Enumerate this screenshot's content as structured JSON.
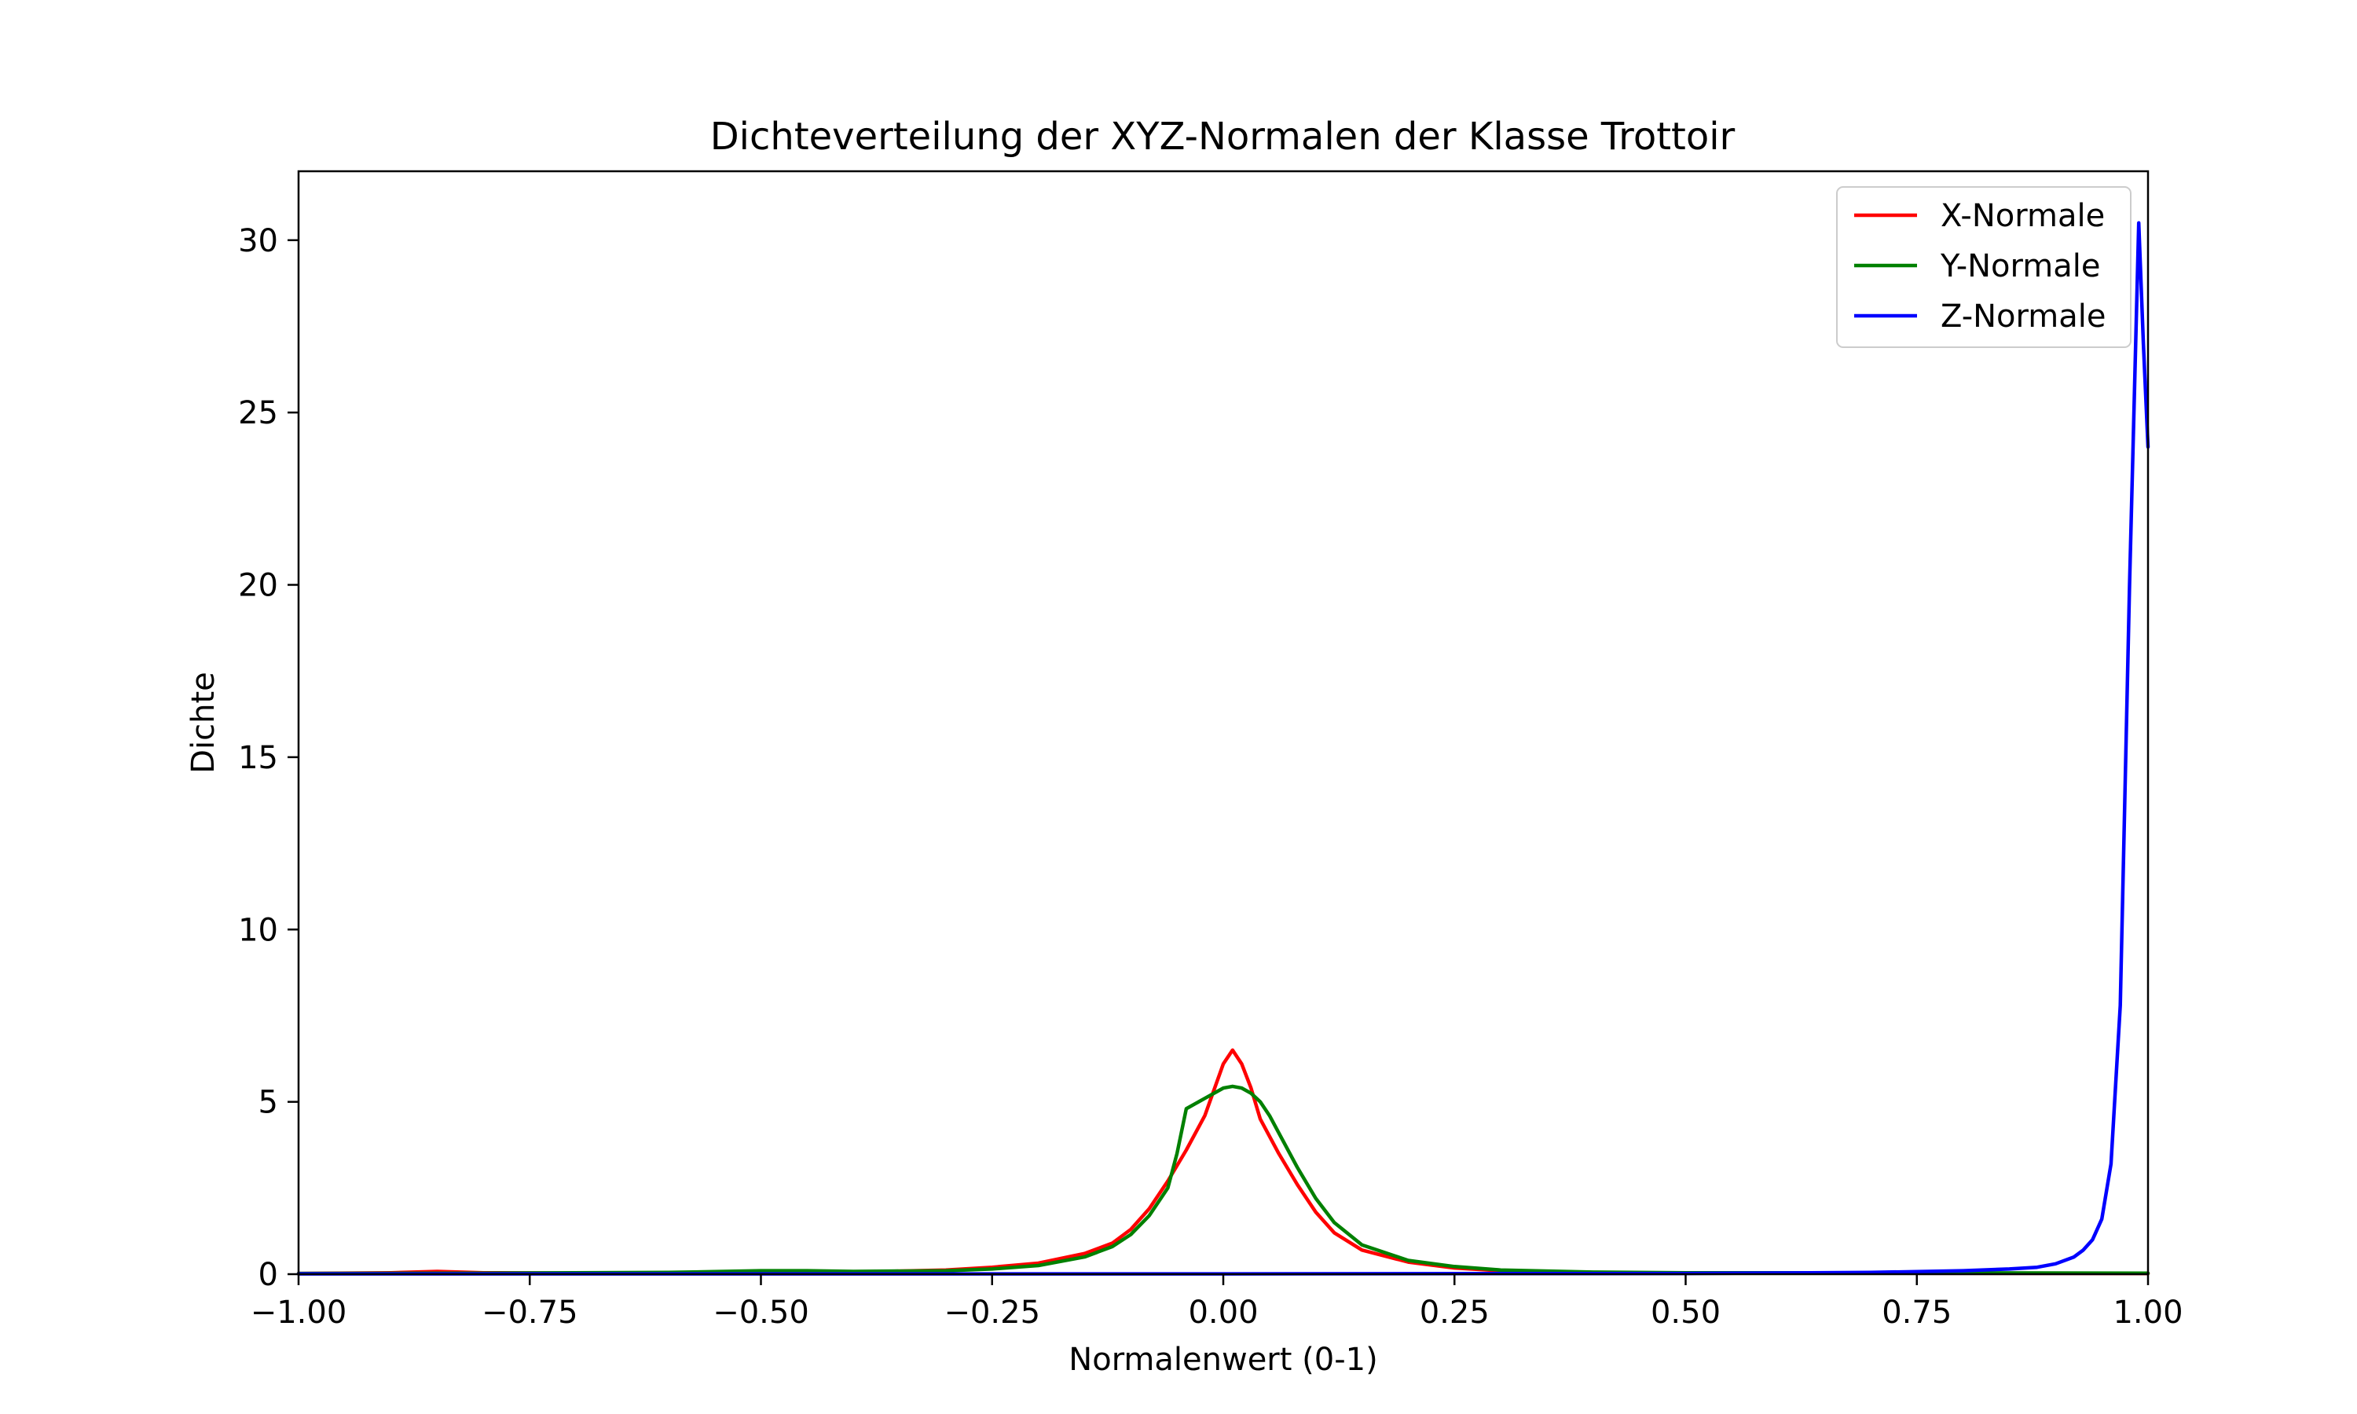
{
  "chart_data": {
    "type": "line",
    "title": "Dichteverteilung der XYZ-Normalen der Klasse Trottoir",
    "xlabel": "Normalenwert (0-1)",
    "ylabel": "Dichte",
    "xlim": [
      -1.0,
      1.0
    ],
    "ylim": [
      0,
      32
    ],
    "xticks": [
      -1.0,
      -0.75,
      -0.5,
      -0.25,
      0.0,
      0.25,
      0.5,
      0.75,
      1.0
    ],
    "xtick_labels": [
      "−1.00",
      "−0.75",
      "−0.50",
      "−0.25",
      "0.00",
      "0.25",
      "0.50",
      "0.75",
      "1.00"
    ],
    "yticks": [
      0,
      5,
      10,
      15,
      20,
      25,
      30
    ],
    "ytick_labels": [
      "0",
      "5",
      "10",
      "15",
      "20",
      "25",
      "30"
    ],
    "grid": false,
    "legend": "top-right",
    "series": [
      {
        "name": "X-Normale",
        "color": "#ff0000",
        "x": [
          -1.0,
          -0.9,
          -0.85,
          -0.8,
          -0.7,
          -0.6,
          -0.5,
          -0.4,
          -0.3,
          -0.25,
          -0.2,
          -0.15,
          -0.12,
          -0.1,
          -0.08,
          -0.06,
          -0.04,
          -0.02,
          0.0,
          0.01,
          0.02,
          0.03,
          0.04,
          0.06,
          0.08,
          0.1,
          0.12,
          0.15,
          0.2,
          0.25,
          0.3,
          0.4,
          0.5,
          0.7,
          1.0
        ],
        "y": [
          0.02,
          0.04,
          0.08,
          0.04,
          0.03,
          0.04,
          0.05,
          0.06,
          0.12,
          0.2,
          0.32,
          0.6,
          0.9,
          1.3,
          1.9,
          2.7,
          3.6,
          4.6,
          6.1,
          6.5,
          6.1,
          5.4,
          4.5,
          3.5,
          2.6,
          1.8,
          1.2,
          0.7,
          0.35,
          0.18,
          0.1,
          0.05,
          0.03,
          0.03,
          0.02
        ]
      },
      {
        "name": "Y-Normale",
        "color": "#008000",
        "x": [
          -1.0,
          -0.8,
          -0.6,
          -0.5,
          -0.45,
          -0.4,
          -0.3,
          -0.25,
          -0.2,
          -0.15,
          -0.12,
          -0.1,
          -0.08,
          -0.06,
          -0.05,
          -0.04,
          -0.02,
          0.0,
          0.01,
          0.02,
          0.03,
          0.04,
          0.05,
          0.06,
          0.08,
          0.1,
          0.12,
          0.15,
          0.2,
          0.25,
          0.3,
          0.4,
          0.5,
          0.7,
          1.0
        ],
        "y": [
          0.02,
          0.03,
          0.05,
          0.1,
          0.1,
          0.08,
          0.1,
          0.15,
          0.25,
          0.5,
          0.8,
          1.15,
          1.7,
          2.5,
          3.5,
          4.8,
          5.1,
          5.4,
          5.45,
          5.4,
          5.25,
          5.0,
          4.6,
          4.1,
          3.1,
          2.2,
          1.5,
          0.85,
          0.4,
          0.22,
          0.12,
          0.06,
          0.04,
          0.04,
          0.03
        ]
      },
      {
        "name": "Z-Normale",
        "color": "#0000ff",
        "x": [
          -1.0,
          0.0,
          0.5,
          0.7,
          0.8,
          0.85,
          0.88,
          0.9,
          0.92,
          0.93,
          0.94,
          0.95,
          0.96,
          0.97,
          0.98,
          0.99,
          0.995,
          1.0
        ],
        "y": [
          0.01,
          0.01,
          0.02,
          0.05,
          0.1,
          0.15,
          0.2,
          0.3,
          0.5,
          0.7,
          1.0,
          1.6,
          3.2,
          7.8,
          20.0,
          30.5,
          27.0,
          24.0
        ]
      }
    ]
  }
}
